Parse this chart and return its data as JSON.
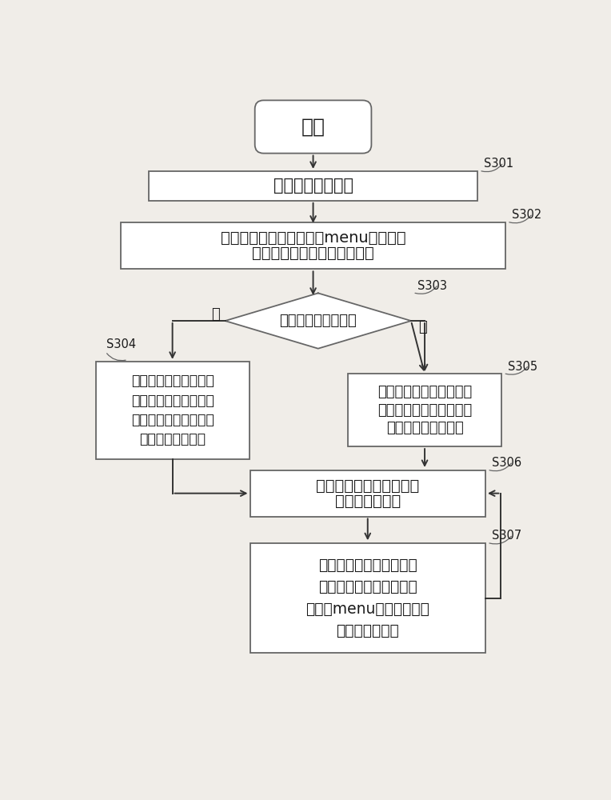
{
  "bg_color": "#f0ede8",
  "box_color": "#ffffff",
  "box_edge": "#666666",
  "text_color": "#1a1a1a",
  "arrow_color": "#333333",
  "title_start": "开始",
  "s301_label": "S301",
  "s302_label": "S302",
  "s303_label": "S303",
  "s304_label": "S304",
  "s305_label": "S305",
  "s306_label": "S306",
  "s307_label": "S307",
  "s301_text": "打开分屏模式开关",
  "s302_line1": "在一个全屏应用界面长按menu键，获取",
  "s302_line2": "移动终端支持分屏的应用列表",
  "s303_text": "应用列表是否存在？",
  "s303_no": "否",
  "s303_yes": "是",
  "s304_line1": "屏幕分为上下两部分，",
  "s304_line2": "上半部分显示当前应用",
  "s304_line3": "，下半部分显示启动的",
  "s304_line4": "最近任务列表界面",
  "s305_line1": "屏幕分为上下两部分，上",
  "s305_line2": "半部分显示当前应用，下",
  "s305_line3": "半部分显示应用列表",
  "s306_line1": "用户滑动选择需要打开的",
  "s306_line2": "应用，点击打开",
  "s307_line1": "需要切换应用时，点击选",
  "s307_line2": "中的需要切换的窗口，然",
  "s307_line3": "后点击menu键，显示支持",
  "s307_line4": "分屏的应用列表"
}
